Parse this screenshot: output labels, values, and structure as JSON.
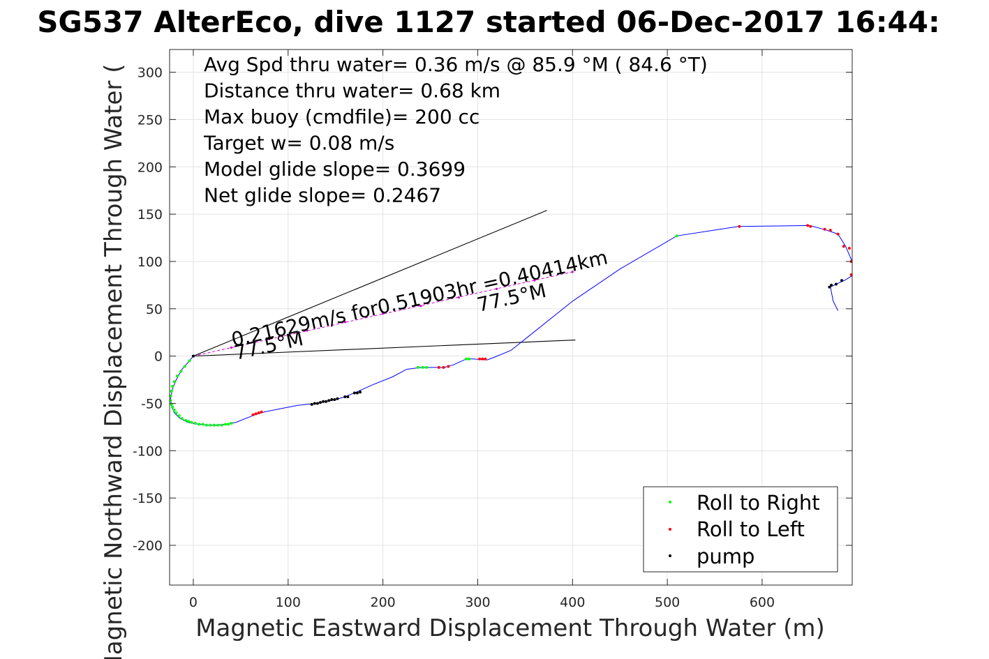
{
  "chart_data": {
    "type": "scatter",
    "title": "SG537 AlterEco, dive 1127 started 06-Dec-2017 16:44:",
    "xlabel": "Magnetic Eastward Displacement Through Water (m)",
    "ylabel": "Magnetic Northward Displacement Through Water (",
    "xlim": [
      -25,
      695
    ],
    "ylim": [
      -242,
      324
    ],
    "xticks": [
      0,
      100,
      200,
      300,
      400,
      500,
      600
    ],
    "yticks": [
      300,
      250,
      200,
      150,
      100,
      50,
      0,
      -50,
      -100,
      -150,
      -200
    ],
    "grid": true,
    "legend_position": "bottom-right",
    "info_lines": [
      "Avg Spd thru water=  0.36 m/s @  85.9 °M ( 84.6 °T)",
      "Distance thru water=  0.68 km",
      "Max buoy (cmdfile)= 200 cc",
      "Target w= 0.08 m/s",
      "Model glide slope= 0.3699",
      "Net glide slope= 0.2467"
    ],
    "annotations": {
      "speed_label": "0.21629m/s for0.51903hr =0.40414km",
      "heading_label_1": "77.5°M",
      "heading_label_2": "77.5°M"
    },
    "reference_lines": [
      {
        "name": "upper",
        "x": [
          0,
          373
        ],
        "y": [
          0,
          154
        ]
      },
      {
        "name": "lower",
        "x": [
          0,
          403
        ],
        "y": [
          0,
          17
        ]
      },
      {
        "name": "heading",
        "x": [
          0,
          400
        ],
        "y": [
          0,
          89
        ]
      }
    ],
    "track": {
      "color": "#0000ff",
      "x": [
        0,
        -5,
        -12,
        -18,
        -22,
        -24,
        -23,
        -20,
        -15,
        -6,
        5,
        15,
        25,
        35,
        45,
        65,
        75,
        90,
        110,
        130,
        150,
        160,
        172,
        190,
        210,
        225,
        240,
        265,
        275,
        288,
        295,
        310,
        318,
        335,
        355,
        400,
        450,
        510,
        575,
        650,
        665,
        680,
        688,
        695,
        695,
        687,
        678,
        672,
        675,
        680
      ],
      "y": [
        0,
        -6,
        -14,
        -25,
        -35,
        -45,
        -52,
        -60,
        -65,
        -70,
        -72,
        -73,
        -73,
        -72,
        -70,
        -62,
        -59,
        -56,
        -52,
        -50,
        -46,
        -43,
        -38,
        -30,
        -22,
        -14,
        -12,
        -12,
        -9,
        -3,
        -3,
        -4,
        -1,
        6,
        22,
        58,
        92,
        127,
        137,
        138,
        134,
        129,
        116,
        100,
        85,
        80,
        76,
        73,
        58,
        48
      ]
    },
    "series": [
      {
        "name": "Roll to Right",
        "color": "#00ff00",
        "x": [
          0,
          -4,
          -9,
          -13,
          -17,
          -20,
          -22,
          -23,
          -24,
          -24,
          -23,
          -22,
          -20,
          -18,
          -15,
          -12,
          -8,
          -5,
          -2,
          2,
          6,
          10,
          14,
          18,
          22,
          26,
          30,
          34,
          37,
          40,
          237,
          242,
          246,
          288,
          291,
          510
        ],
        "y": [
          0,
          -5,
          -11,
          -16,
          -21,
          -27,
          -32,
          -37,
          -42,
          -47,
          -51,
          -54,
          -57,
          -60,
          -63,
          -66,
          -68,
          -69,
          -70,
          -71,
          -72,
          -72,
          -73,
          -73,
          -73,
          -73,
          -73,
          -72,
          -72,
          -71,
          -12,
          -12,
          -12,
          -3,
          -3,
          127
        ]
      },
      {
        "name": "Roll to Left",
        "color": "#ff0000",
        "x": [
          63,
          66,
          69,
          72,
          259,
          264,
          269,
          302,
          305,
          308,
          576,
          648,
          651,
          666,
          672,
          680,
          686,
          692,
          694,
          694
        ],
        "y": [
          -62,
          -61,
          -60,
          -59,
          -12,
          -12,
          -11,
          -3,
          -3,
          -3,
          137,
          138,
          137,
          134,
          133,
          129,
          116,
          114,
          100,
          86
        ]
      },
      {
        "name": "pump",
        "color": "#000000",
        "x": [
          0,
          125,
          128,
          131,
          134,
          137,
          140,
          143,
          146,
          149,
          152,
          160,
          163,
          170,
          173,
          176,
          684,
          678,
          673,
          671
        ],
        "y": [
          0,
          -51,
          -50,
          -50,
          -49,
          -48,
          -48,
          -47,
          -46,
          -46,
          -45,
          -43,
          -43,
          -39,
          -39,
          -38,
          80,
          76,
          75,
          73
        ]
      }
    ],
    "glide_path_points": {
      "color": "#cc00cc",
      "x": [
        40,
        80,
        120,
        160,
        200,
        240,
        280,
        320,
        360,
        400
      ],
      "y": [
        9,
        18,
        27,
        36,
        45,
        53,
        62,
        71,
        80,
        89
      ]
    }
  }
}
